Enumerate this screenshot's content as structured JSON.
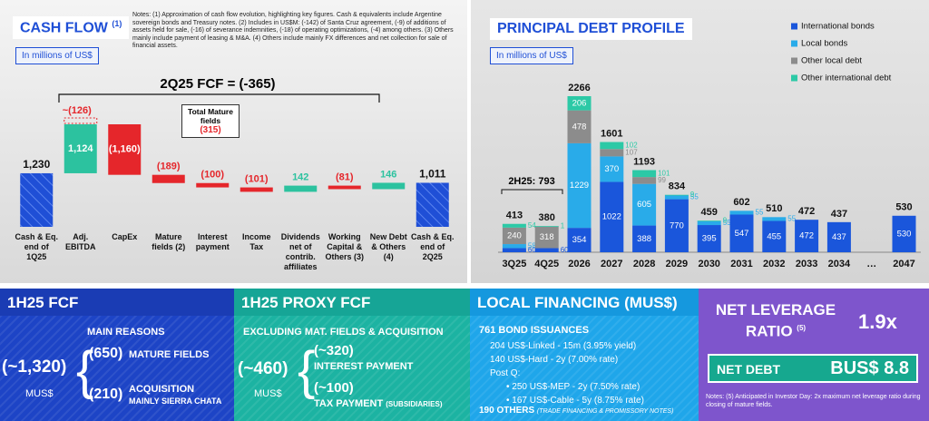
{
  "chart_data": [
    {
      "type": "waterfall",
      "title": "CASH FLOW",
      "title_note": "(1)",
      "subtitle": "In millions of US$",
      "notes": "Notes: (1) Approximation of cash flow evolution, highlighting key figures. Cash & equivalents include Argentine sovereign bonds and Treasury notes. (2) Includes in US$M: (-142) of Santa Cruz agreement, (-9) of additions of assets held for sale, (-16) of severance indemnities, (-18) of operating optimizations, (-4) among others. (3) Others mainly include payment of leasing & M&A. (4) Others include mainly FX differences and net collection for sale of financial assets.",
      "header": "2Q25 FCF = (-365)",
      "categories": [
        "Cash & Eq. end of 1Q25",
        "Adj. EBITDA",
        "CapEx",
        "Mature fields (2)",
        "Interest payment",
        "Income Tax",
        "Dividends net of contrib. affiliates",
        "Working Capital & Others (3)",
        "New Debt & Others (4)",
        "Cash & Eq. end of 2Q25"
      ],
      "values": [
        1230,
        1124,
        -1160,
        -189,
        -100,
        -101,
        142,
        -81,
        146,
        1011
      ],
      "value_labels": [
        "1,230",
        "1,124",
        "(1,160)",
        "(189)",
        "(100)",
        "(101)",
        "142",
        "(81)",
        "146",
        "1,011"
      ],
      "colors": {
        "total": "#1f4fd6",
        "increase": "#2cc29f",
        "decrease": "#e5262b"
      },
      "annotations": [
        "~(126)",
        "Total Mature fields",
        "(315)"
      ]
    },
    {
      "type": "stacked_bar",
      "title": "PRINCIPAL DEBT PROFILE",
      "subtitle": "In millions of US$",
      "categories": [
        "3Q25",
        "4Q25",
        "2026",
        "2027",
        "2028",
        "2029",
        "2030",
        "2031",
        "2032",
        "2033",
        "2034",
        "…",
        "2047"
      ],
      "series": [
        {
          "name": "International bonds",
          "color": "#1a56db",
          "values": [
            60,
            60,
            354,
            1022,
            388,
            770,
            395,
            547,
            455,
            472,
            437,
            null,
            530
          ]
        },
        {
          "name": "Local bonds",
          "color": "#29abe9",
          "values": [
            58,
            null,
            1229,
            370,
            605,
            55,
            55,
            55,
            55,
            null,
            null,
            null,
            null
          ]
        },
        {
          "name": "Other local debt",
          "color": "#8c8c8c",
          "values": [
            240,
            318,
            478,
            107,
            99,
            null,
            null,
            null,
            null,
            null,
            null,
            null,
            null
          ]
        },
        {
          "name": "Other international debt",
          "color": "#2cc9a6",
          "values": [
            54,
            1,
            206,
            102,
            101,
            9,
            9,
            null,
            null,
            null,
            null,
            null,
            null
          ]
        }
      ],
      "totals": [
        413,
        380,
        2266,
        1601,
        1193,
        834,
        459,
        602,
        510,
        472,
        437,
        null,
        530
      ],
      "annotation": "2H25: 793",
      "legend": "top-right"
    }
  ],
  "panels": {
    "fcf": {
      "title": "1H25 FCF",
      "subtitle": "MAIN REASONS",
      "value": "(~1,320)",
      "unit": "MUS$",
      "items": [
        {
          "value": "(650)",
          "label": "MATURE FIELDS"
        },
        {
          "value": "(210)",
          "label": "ACQUISITION",
          "detail": "MAINLY SIERRA CHATA"
        }
      ]
    },
    "proxy": {
      "title": "1H25 PROXY FCF",
      "subtitle": "EXCLUDING MAT. FIELDS & ACQUISITION",
      "value": "(~460)",
      "unit": "MUS$",
      "items": [
        {
          "value": "(~320)",
          "label": "INTEREST PAYMENT"
        },
        {
          "value": "(~100)",
          "label": "TAX PAYMENT",
          "detail": "(SUBSIDIARIES)"
        }
      ]
    },
    "financing": {
      "title": "LOCAL FINANCING (MUS$)",
      "subtitle": "761 BOND ISSUANCES",
      "lines": [
        "204 US$-Linked - 15m (3.95% yield)",
        "140 US$-Hard - 2y (7.00% rate)",
        "Post Q:"
      ],
      "post_lines": [
        "250 US$-MEP - 2y (7.50% rate)",
        "167 US$-Cable - 5y (8.75% rate)"
      ],
      "others": "190 OTHERS",
      "others_detail": "(TRADE FINANCING & PROMISSORY NOTES)"
    },
    "leverage": {
      "title": "NET LEVERAGE RATIO",
      "title_note": "(5)",
      "value": "1.9x",
      "debt_label": "NET DEBT",
      "debt_value": "BUS$ 8.8",
      "notes": "Notes: (5) Anticipated in Investor Day: 2x maximum net leverage ratio during closing of mature fields."
    }
  }
}
